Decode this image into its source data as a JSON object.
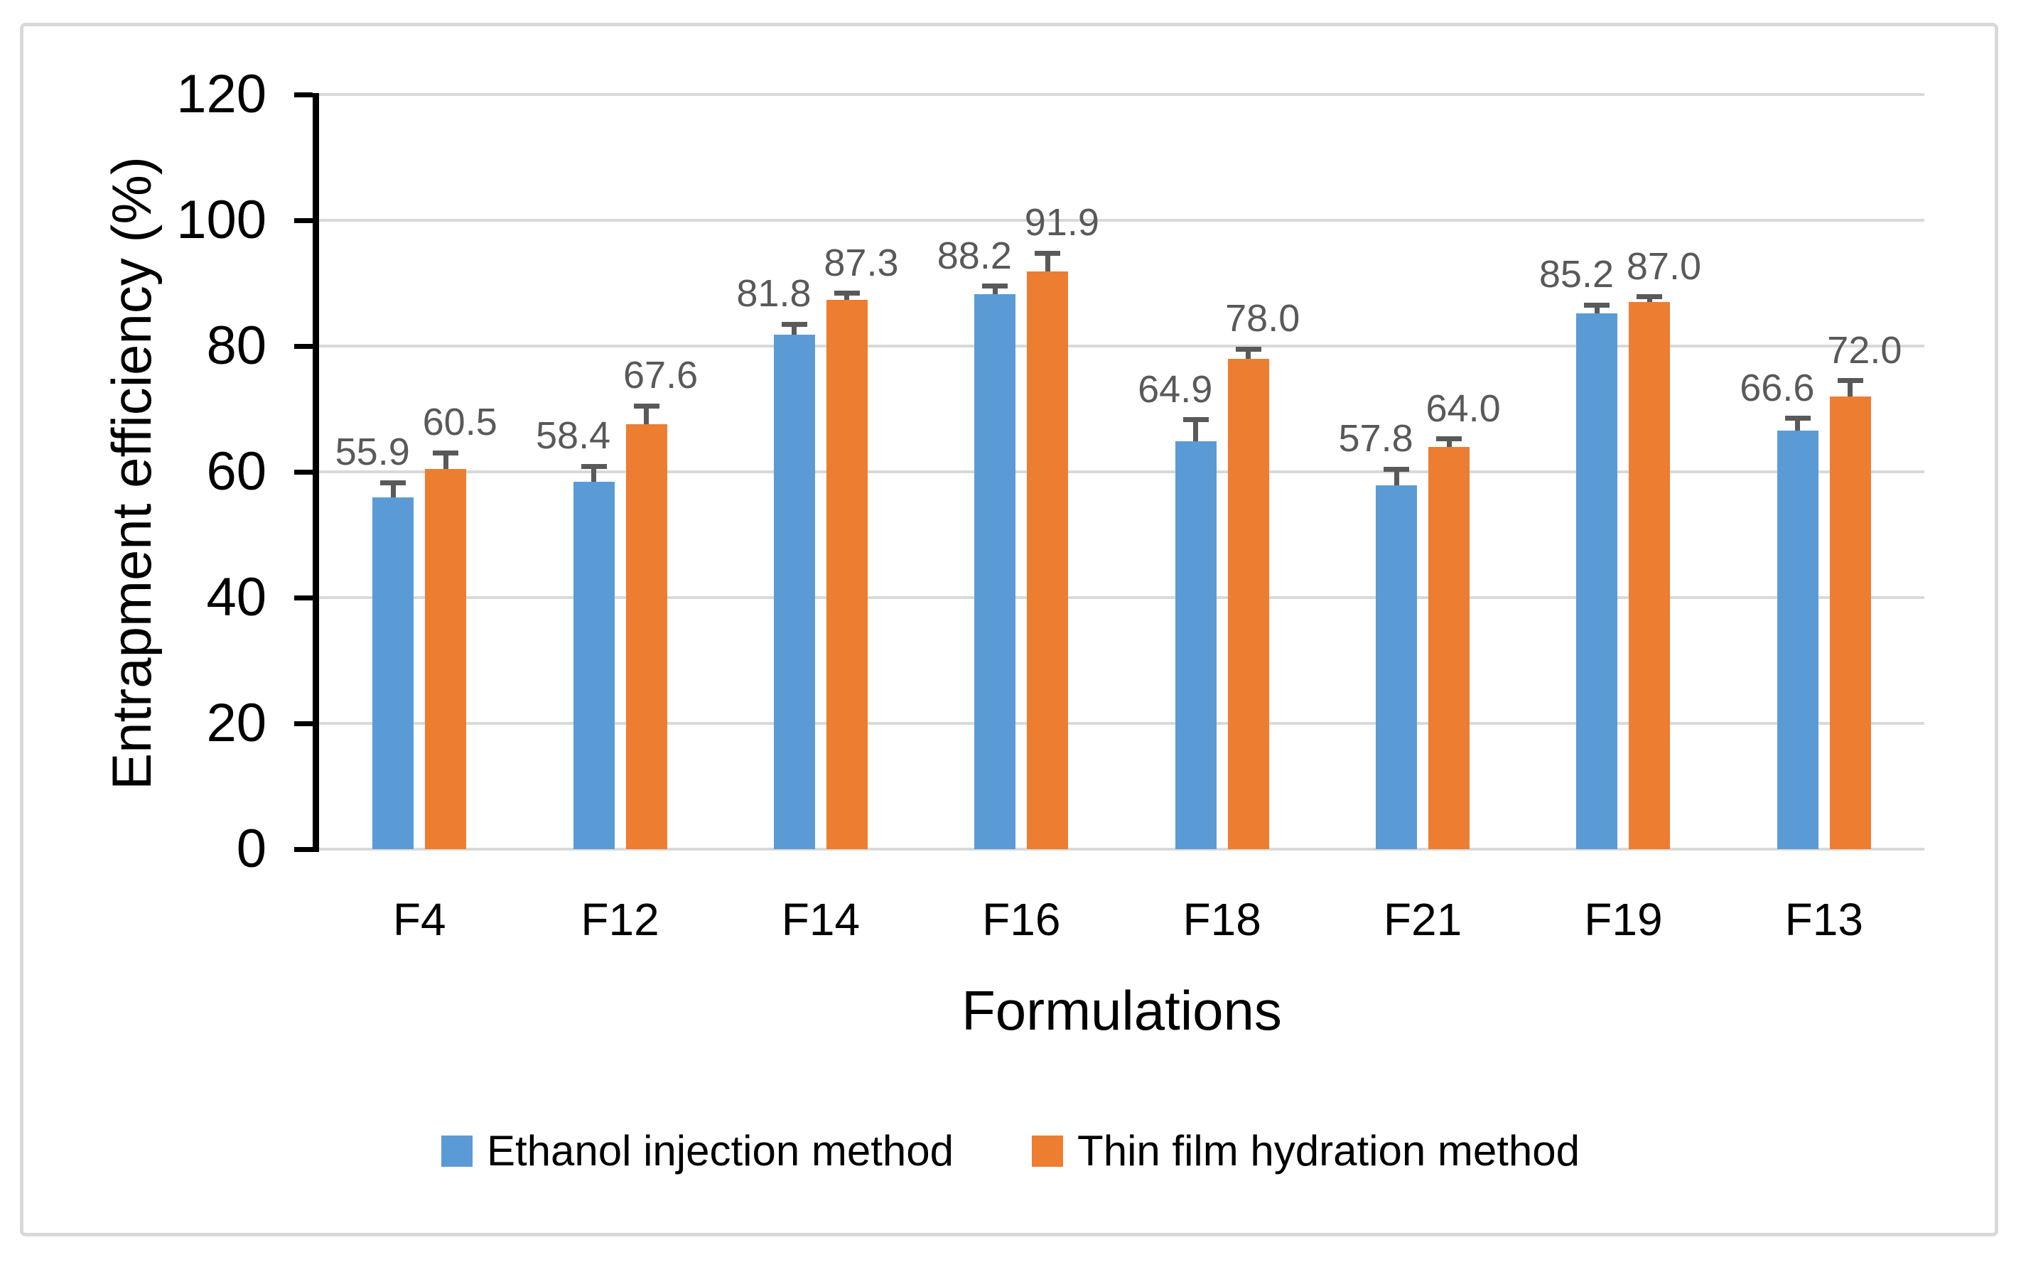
{
  "chart_data": {
    "type": "bar",
    "title": "",
    "xlabel": "Formulations",
    "ylabel": "Entrapment efficiency (%)",
    "ylim": [
      0,
      120
    ],
    "yticks": [
      0,
      20,
      40,
      60,
      80,
      100,
      120
    ],
    "grid": "horizontal",
    "legend_position": "bottom",
    "categories": [
      "F4",
      "F12",
      "F14",
      "F16",
      "F18",
      "F21",
      "F19",
      "F13"
    ],
    "series": [
      {
        "name": "Ethanol injection method",
        "color": "#5B9BD5",
        "values": [
          55.9,
          58.4,
          81.8,
          88.2,
          64.9,
          57.8,
          85.2,
          66.6
        ],
        "labels": [
          "55.9",
          "58.4",
          "81.8",
          "88.2",
          "64.9",
          "57.8",
          "85.2",
          "66.6"
        ],
        "errors": [
          2.4,
          2.5,
          1.7,
          1.3,
          3.4,
          2.6,
          1.3,
          1.9
        ]
      },
      {
        "name": "Thin film hydration method",
        "color": "#ED7D31",
        "values": [
          60.5,
          67.6,
          87.3,
          91.9,
          78.0,
          64.0,
          87.0,
          72.0
        ],
        "labels": [
          "60.5",
          "67.6",
          "87.3",
          "91.9",
          "78.0",
          "64.0",
          "87.0",
          "72.0"
        ],
        "errors": [
          2.5,
          2.9,
          1.1,
          2.9,
          1.5,
          1.2,
          0.8,
          2.5
        ]
      }
    ],
    "colors": {
      "grid": "#D9D9D9",
      "axis": "#000000",
      "error_bar": "#595959",
      "value_label": "#595959",
      "text": "#000000",
      "frame_border": "#D9D9D9",
      "background": "#FFFFFF"
    }
  }
}
